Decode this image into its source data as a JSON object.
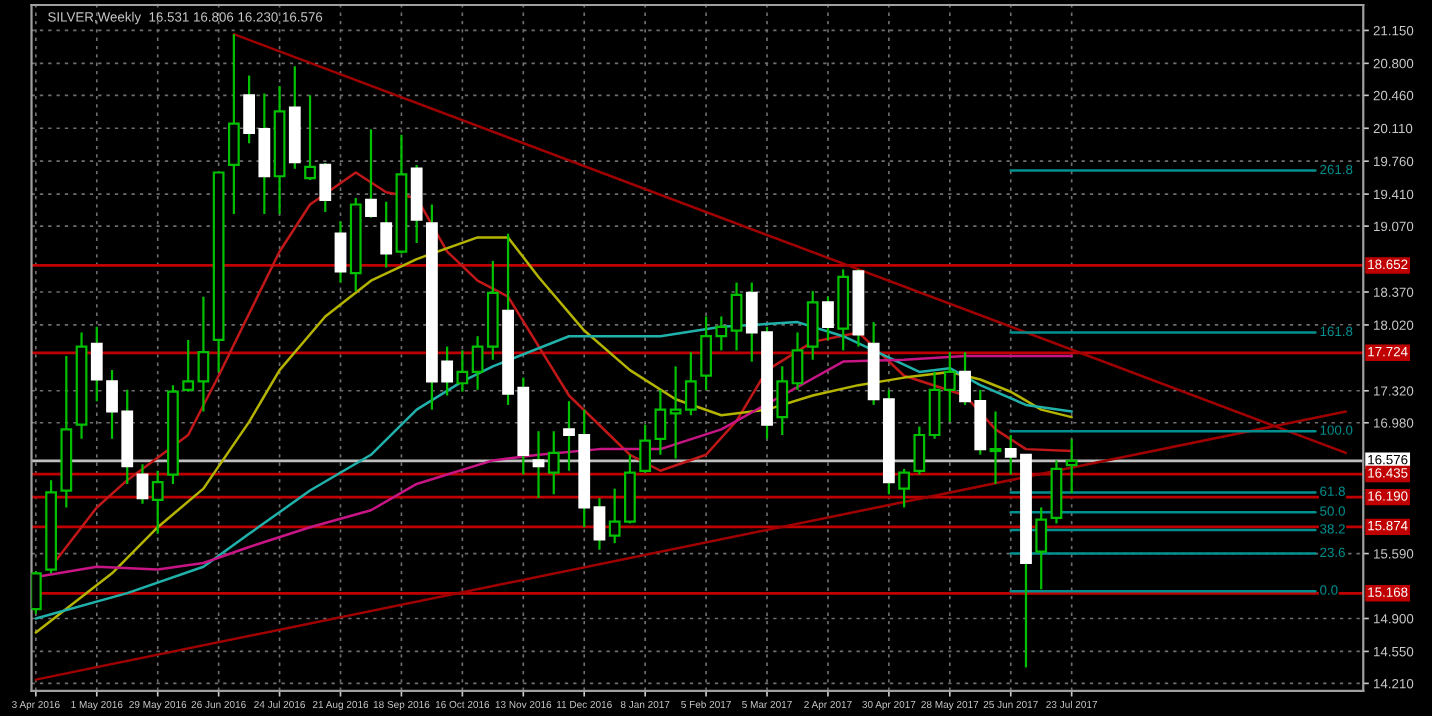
{
  "chart_data": {
    "type": "candlestick",
    "title": "SILVER,Weekly  16.531 16.806 16.230 16.576",
    "x": [
      "2016-04-03",
      "2016-04-10",
      "2016-04-17",
      "2016-04-24",
      "2016-05-01",
      "2016-05-08",
      "2016-05-15",
      "2016-05-22",
      "2016-05-29",
      "2016-06-05",
      "2016-06-12",
      "2016-06-19",
      "2016-06-26",
      "2016-07-03",
      "2016-07-10",
      "2016-07-17",
      "2016-07-24",
      "2016-07-31",
      "2016-08-07",
      "2016-08-14",
      "2016-08-21",
      "2016-08-28",
      "2016-09-04",
      "2016-09-11",
      "2016-09-18",
      "2016-09-25",
      "2016-10-02",
      "2016-10-09",
      "2016-10-16",
      "2016-10-23",
      "2016-10-30",
      "2016-11-06",
      "2016-11-13",
      "2016-11-20",
      "2016-11-27",
      "2016-12-04",
      "2016-12-11",
      "2016-12-18",
      "2016-12-25",
      "2017-01-01",
      "2017-01-08",
      "2017-01-15",
      "2017-01-22",
      "2017-01-29",
      "2017-02-05",
      "2017-02-12",
      "2017-02-19",
      "2017-02-26",
      "2017-03-05",
      "2017-03-12",
      "2017-03-19",
      "2017-03-26",
      "2017-04-02",
      "2017-04-09",
      "2017-04-16",
      "2017-04-23",
      "2017-04-30",
      "2017-05-07",
      "2017-05-14",
      "2017-05-21",
      "2017-05-28",
      "2017-06-04",
      "2017-06-11",
      "2017-06-18",
      "2017-06-25",
      "2017-07-02",
      "2017-07-09",
      "2017-07-16",
      "2017-07-23"
    ],
    "ohlc": [
      [
        15.0,
        15.4,
        14.95,
        15.38
      ],
      [
        15.42,
        16.37,
        15.38,
        16.24
      ],
      [
        16.26,
        17.69,
        16.08,
        16.91
      ],
      [
        16.96,
        17.94,
        16.81,
        17.79
      ],
      [
        17.82,
        18.0,
        17.21,
        17.44
      ],
      [
        17.42,
        17.54,
        16.81,
        17.1
      ],
      [
        17.1,
        17.33,
        16.33,
        16.52
      ],
      [
        16.43,
        16.54,
        16.12,
        16.18
      ],
      [
        16.16,
        16.47,
        15.8,
        16.35
      ],
      [
        16.43,
        17.38,
        16.33,
        17.31
      ],
      [
        17.33,
        17.86,
        17.31,
        17.42
      ],
      [
        17.42,
        18.32,
        17.1,
        17.73
      ],
      [
        17.86,
        19.64,
        17.52,
        19.64
      ],
      [
        19.72,
        21.11,
        19.2,
        20.16
      ],
      [
        20.46,
        20.67,
        19.95,
        20.06
      ],
      [
        20.1,
        20.48,
        19.2,
        19.6
      ],
      [
        19.6,
        20.56,
        19.2,
        20.29
      ],
      [
        20.33,
        20.77,
        19.68,
        19.75
      ],
      [
        19.58,
        20.46,
        19.56,
        19.7
      ],
      [
        19.72,
        19.74,
        19.22,
        19.35
      ],
      [
        18.99,
        19.12,
        18.47,
        18.59
      ],
      [
        18.57,
        19.37,
        18.38,
        19.3
      ],
      [
        19.35,
        20.1,
        19.16,
        19.18
      ],
      [
        19.1,
        19.33,
        18.63,
        18.78
      ],
      [
        18.8,
        20.04,
        18.78,
        19.62
      ],
      [
        19.68,
        19.72,
        18.89,
        19.14
      ],
      [
        19.1,
        19.3,
        17.12,
        17.42
      ],
      [
        17.63,
        17.79,
        17.27,
        17.42
      ],
      [
        17.4,
        17.75,
        17.31,
        17.52
      ],
      [
        17.52,
        17.9,
        17.33,
        17.79
      ],
      [
        17.79,
        18.7,
        17.65,
        18.36
      ],
      [
        18.17,
        18.99,
        17.17,
        17.29
      ],
      [
        17.35,
        17.46,
        16.43,
        16.64
      ],
      [
        16.58,
        16.89,
        16.18,
        16.52
      ],
      [
        16.45,
        16.89,
        16.22,
        16.66
      ],
      [
        16.91,
        17.21,
        16.47,
        16.85
      ],
      [
        16.85,
        17.12,
        15.87,
        16.08
      ],
      [
        16.08,
        16.18,
        15.63,
        15.74
      ],
      [
        15.78,
        16.28,
        15.7,
        15.93
      ],
      [
        15.93,
        16.64,
        15.91,
        16.45
      ],
      [
        16.47,
        16.96,
        16.45,
        16.79
      ],
      [
        16.81,
        17.33,
        16.64,
        17.12
      ],
      [
        17.08,
        17.58,
        16.6,
        17.12
      ],
      [
        17.12,
        17.73,
        17.06,
        17.42
      ],
      [
        17.48,
        18.11,
        17.33,
        17.9
      ],
      [
        17.9,
        18.11,
        17.75,
        18.0
      ],
      [
        17.96,
        18.47,
        17.75,
        18.34
      ],
      [
        18.36,
        18.47,
        17.63,
        17.94
      ],
      [
        17.94,
        18.0,
        16.81,
        16.96
      ],
      [
        17.04,
        17.58,
        16.85,
        17.42
      ],
      [
        17.4,
        17.94,
        17.33,
        17.75
      ],
      [
        17.79,
        18.38,
        17.65,
        18.26
      ],
      [
        18.26,
        18.32,
        17.86,
        18.0
      ],
      [
        17.98,
        18.61,
        17.75,
        18.53
      ],
      [
        18.59,
        18.61,
        17.79,
        17.92
      ],
      [
        17.82,
        18.05,
        17.17,
        17.23
      ],
      [
        17.23,
        17.33,
        16.22,
        16.35
      ],
      [
        16.28,
        16.49,
        16.08,
        16.45
      ],
      [
        16.47,
        16.94,
        16.43,
        16.85
      ],
      [
        16.85,
        17.52,
        16.81,
        17.33
      ],
      [
        17.33,
        17.73,
        16.99,
        17.52
      ],
      [
        17.52,
        17.73,
        17.17,
        17.21
      ],
      [
        17.21,
        17.33,
        16.64,
        16.7
      ],
      [
        16.68,
        17.1,
        16.33,
        16.7
      ],
      [
        16.7,
        16.85,
        16.43,
        16.62
      ],
      [
        16.64,
        16.64,
        14.38,
        15.49
      ],
      [
        15.61,
        16.08,
        15.21,
        15.95
      ],
      [
        15.97,
        16.58,
        15.91,
        16.49
      ],
      [
        16.531,
        16.806,
        16.23,
        16.576
      ]
    ],
    "series": [
      {
        "type": "line",
        "color": "#c01818",
        "x": [
          "2016-04-10",
          "2016-05-01",
          "2016-05-15",
          "2016-06-12",
          "2016-06-26",
          "2016-07-24",
          "2016-08-07",
          "2016-08-28",
          "2016-09-11",
          "2016-09-25",
          "2016-10-09",
          "2016-10-23",
          "2016-11-06",
          "2016-12-04",
          "2017-01-01",
          "2017-01-15",
          "2017-02-05",
          "2017-02-19",
          "2017-03-05",
          "2017-03-26",
          "2017-04-16",
          "2017-05-07",
          "2017-06-04",
          "2017-06-18",
          "2017-07-02",
          "2017-07-23"
        ],
        "values": [
          15.45,
          16.08,
          16.37,
          16.85,
          17.48,
          18.8,
          19.3,
          19.64,
          19.43,
          19.37,
          18.8,
          18.49,
          18.32,
          17.27,
          16.64,
          16.47,
          16.64,
          17.0,
          17.54,
          17.84,
          17.94,
          17.48,
          17.27,
          16.91,
          16.7,
          16.68
        ]
      },
      {
        "type": "line",
        "color": "#b4b400",
        "x": [
          "2016-04-03",
          "2016-05-08",
          "2016-05-29",
          "2016-06-19",
          "2016-07-10",
          "2016-07-24",
          "2016-08-14",
          "2016-09-04",
          "2016-09-25",
          "2016-10-23",
          "2016-11-06",
          "2016-11-20",
          "2016-12-11",
          "2017-01-01",
          "2017-01-22",
          "2017-02-12",
          "2017-03-05",
          "2017-03-26",
          "2017-04-16",
          "2017-05-07",
          "2017-05-28",
          "2017-06-11",
          "2017-06-25",
          "2017-07-09",
          "2017-07-23"
        ],
        "values": [
          14.75,
          15.38,
          15.87,
          16.28,
          16.99,
          17.54,
          18.11,
          18.49,
          18.72,
          18.95,
          18.95,
          18.53,
          17.96,
          17.54,
          17.23,
          17.06,
          17.12,
          17.27,
          17.38,
          17.46,
          17.52,
          17.44,
          17.31,
          17.12,
          17.04
        ]
      },
      {
        "type": "line",
        "color": "#20b2aa",
        "x": [
          "2016-04-03",
          "2016-05-15",
          "2016-06-19",
          "2016-07-10",
          "2016-08-07",
          "2016-09-04",
          "2016-09-25",
          "2016-10-16",
          "2016-10-30",
          "2016-12-04",
          "2017-01-15",
          "2017-02-12",
          "2017-03-19",
          "2017-04-09",
          "2017-04-23",
          "2017-05-14",
          "2017-05-28",
          "2017-06-11",
          "2017-07-02",
          "2017-07-23"
        ],
        "values": [
          14.9,
          15.17,
          15.45,
          15.8,
          16.26,
          16.64,
          17.12,
          17.42,
          17.58,
          17.9,
          17.9,
          18.0,
          18.05,
          17.9,
          17.75,
          17.52,
          17.56,
          17.38,
          17.17,
          17.1
        ]
      },
      {
        "type": "line",
        "color": "#c71585",
        "x": [
          "2016-04-03",
          "2016-05-01",
          "2016-05-29",
          "2016-06-19",
          "2016-07-10",
          "2016-08-07",
          "2016-09-04",
          "2016-09-25",
          "2016-10-30",
          "2016-11-20",
          "2016-12-18",
          "2017-01-15",
          "2017-02-12",
          "2017-03-12",
          "2017-04-09",
          "2017-05-07",
          "2017-06-04",
          "2017-07-23"
        ],
        "values": [
          15.34,
          15.45,
          15.42,
          15.49,
          15.66,
          15.87,
          16.05,
          16.33,
          16.58,
          16.64,
          16.7,
          16.7,
          16.91,
          17.27,
          17.63,
          17.65,
          17.69,
          17.69
        ]
      },
      {
        "type": "line",
        "color": "#a00000",
        "x": [
          "2016-07-03",
          "2017-11-26"
        ],
        "values": [
          21.11,
          16.66
        ]
      },
      {
        "type": "line",
        "color": "#a00000",
        "x": [
          "2016-04-03",
          "2017-11-26"
        ],
        "values": [
          14.25,
          17.1
        ]
      },
      {
        "type": "line",
        "name": "261.8",
        "color": "#009090",
        "x": [
          "2017-06-25",
          "2017-11-12"
        ],
        "values": [
          19.66,
          19.66
        ]
      },
      {
        "type": "line",
        "name": "161.8",
        "color": "#009090",
        "x": [
          "2017-06-25",
          "2017-11-12"
        ],
        "values": [
          17.94,
          17.94
        ]
      },
      {
        "type": "line",
        "name": "100.0",
        "color": "#009090",
        "x": [
          "2017-06-25",
          "2017-11-12"
        ],
        "values": [
          16.89,
          16.89
        ]
      },
      {
        "type": "line",
        "name": "61.8",
        "color": "#009090",
        "x": [
          "2017-06-25",
          "2017-11-12"
        ],
        "values": [
          16.24,
          16.24
        ]
      },
      {
        "type": "line",
        "name": "50.0",
        "color": "#009090",
        "x": [
          "2017-06-25",
          "2017-11-12"
        ],
        "values": [
          16.03,
          16.03
        ]
      },
      {
        "type": "line",
        "name": "38.2",
        "color": "#009090",
        "x": [
          "2017-06-25",
          "2017-11-12"
        ],
        "values": [
          15.84,
          15.84
        ]
      },
      {
        "type": "line",
        "name": "23.6",
        "color": "#009090",
        "x": [
          "2017-06-25",
          "2017-11-12"
        ],
        "values": [
          15.59,
          15.59
        ]
      },
      {
        "type": "line",
        "name": "0.0",
        "color": "#009090",
        "x": [
          "2017-06-25",
          "2017-11-12"
        ],
        "values": [
          15.19,
          15.19
        ]
      }
    ],
    "ref_lines": [
      {
        "axis": "y",
        "value": 18.652,
        "label": "18.652",
        "color": "#c00000"
      },
      {
        "axis": "y",
        "value": 17.724,
        "label": "17.724",
        "color": "#c00000"
      },
      {
        "axis": "y",
        "value": 16.576,
        "label": "16.576",
        "color": "#c0c0c0"
      },
      {
        "axis": "y",
        "value": 16.435,
        "label": "16.435",
        "color": "#c00000"
      },
      {
        "axis": "y",
        "value": 16.19,
        "label": "16.190",
        "color": "#c00000"
      },
      {
        "axis": "y",
        "value": 15.874,
        "label": "15.874",
        "color": "#c00000"
      },
      {
        "axis": "y",
        "value": 15.168,
        "label": "15.168",
        "color": "#c00000"
      }
    ],
    "xlim": [
      "2016-04-01",
      "2017-12-04"
    ],
    "xticks": [
      {
        "value": "2016-04-03",
        "label": "3 Apr 2016"
      },
      {
        "value": "2016-05-01",
        "label": "1 May 2016"
      },
      {
        "value": "2016-05-29",
        "label": "29 May 2016"
      },
      {
        "value": "2016-06-26",
        "label": "26 Jun 2016"
      },
      {
        "value": "2016-07-24",
        "label": "24 Jul 2016"
      },
      {
        "value": "2016-08-21",
        "label": "21 Aug 2016"
      },
      {
        "value": "2016-09-18",
        "label": "18 Sep 2016"
      },
      {
        "value": "2016-10-16",
        "label": "16 Oct 2016"
      },
      {
        "value": "2016-11-13",
        "label": "13 Nov 2016"
      },
      {
        "value": "2016-12-11",
        "label": "11 Dec 2016"
      },
      {
        "value": "2017-01-08",
        "label": "8 Jan 2017"
      },
      {
        "value": "2017-02-05",
        "label": "5 Feb 2017"
      },
      {
        "value": "2017-03-05",
        "label": "5 Mar 2017"
      },
      {
        "value": "2017-04-02",
        "label": "2 Apr 2017"
      },
      {
        "value": "2017-04-30",
        "label": "30 Apr 2017"
      },
      {
        "value": "2017-05-28",
        "label": "28 May 2017"
      },
      {
        "value": "2017-06-25",
        "label": "25 Jun 2017"
      },
      {
        "value": "2017-07-23",
        "label": "23 Jul 2017"
      }
    ],
    "ylim": [
      14.13,
      21.42
    ],
    "yticks": [
      {
        "value": 21.15,
        "label": "21.150"
      },
      {
        "value": 20.8,
        "label": "20.800"
      },
      {
        "value": 20.46,
        "label": "20.460"
      },
      {
        "value": 20.11,
        "label": "20.110"
      },
      {
        "value": 19.76,
        "label": "19.760"
      },
      {
        "value": 19.41,
        "label": "19.410"
      },
      {
        "value": 19.07,
        "label": "19.070"
      },
      {
        "value": 18.37,
        "label": "18.370"
      },
      {
        "value": 18.02,
        "label": "18.020"
      },
      {
        "value": 17.32,
        "label": "17.320"
      },
      {
        "value": 16.98,
        "label": "16.980"
      },
      {
        "value": 15.59,
        "label": "15.590"
      },
      {
        "value": 14.9,
        "label": "14.900"
      },
      {
        "value": 14.55,
        "label": "14.550"
      },
      {
        "value": 14.21,
        "label": "14.210"
      }
    ],
    "grid": true,
    "legend": false
  }
}
